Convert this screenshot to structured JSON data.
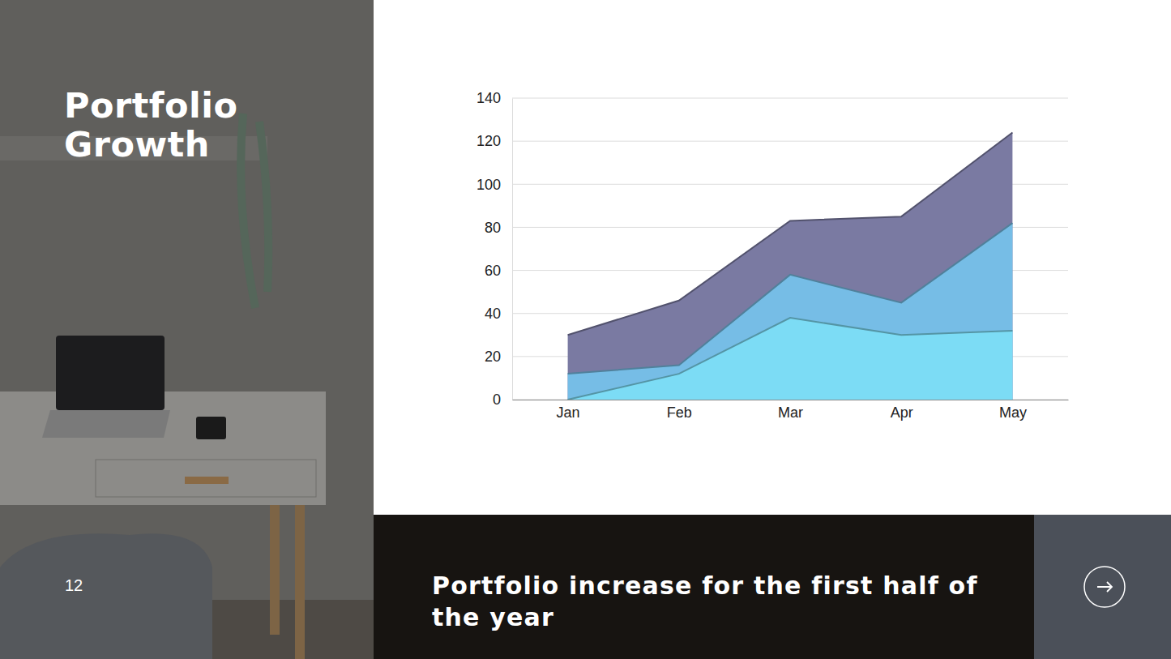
{
  "slide": {
    "title": "Portfolio Growth",
    "page_number": "12",
    "caption": "Portfolio increase for the first half of the year"
  },
  "chart_data": {
    "type": "area",
    "stacked": false,
    "grid": true,
    "categories": [
      "Jan",
      "Feb",
      "Mar",
      "Apr",
      "May"
    ],
    "series": [
      {
        "color": "#7a7aa2",
        "values": [
          30,
          46,
          83,
          85,
          124
        ]
      },
      {
        "color": "#76bde6",
        "values": [
          12,
          16,
          58,
          45,
          82
        ]
      },
      {
        "color": "#7cdcf5",
        "values": [
          0,
          12,
          38,
          30,
          32
        ]
      }
    ],
    "ylim": [
      0,
      140
    ],
    "yticks": [
      0,
      20,
      40,
      60,
      80,
      100,
      120,
      140
    ]
  }
}
